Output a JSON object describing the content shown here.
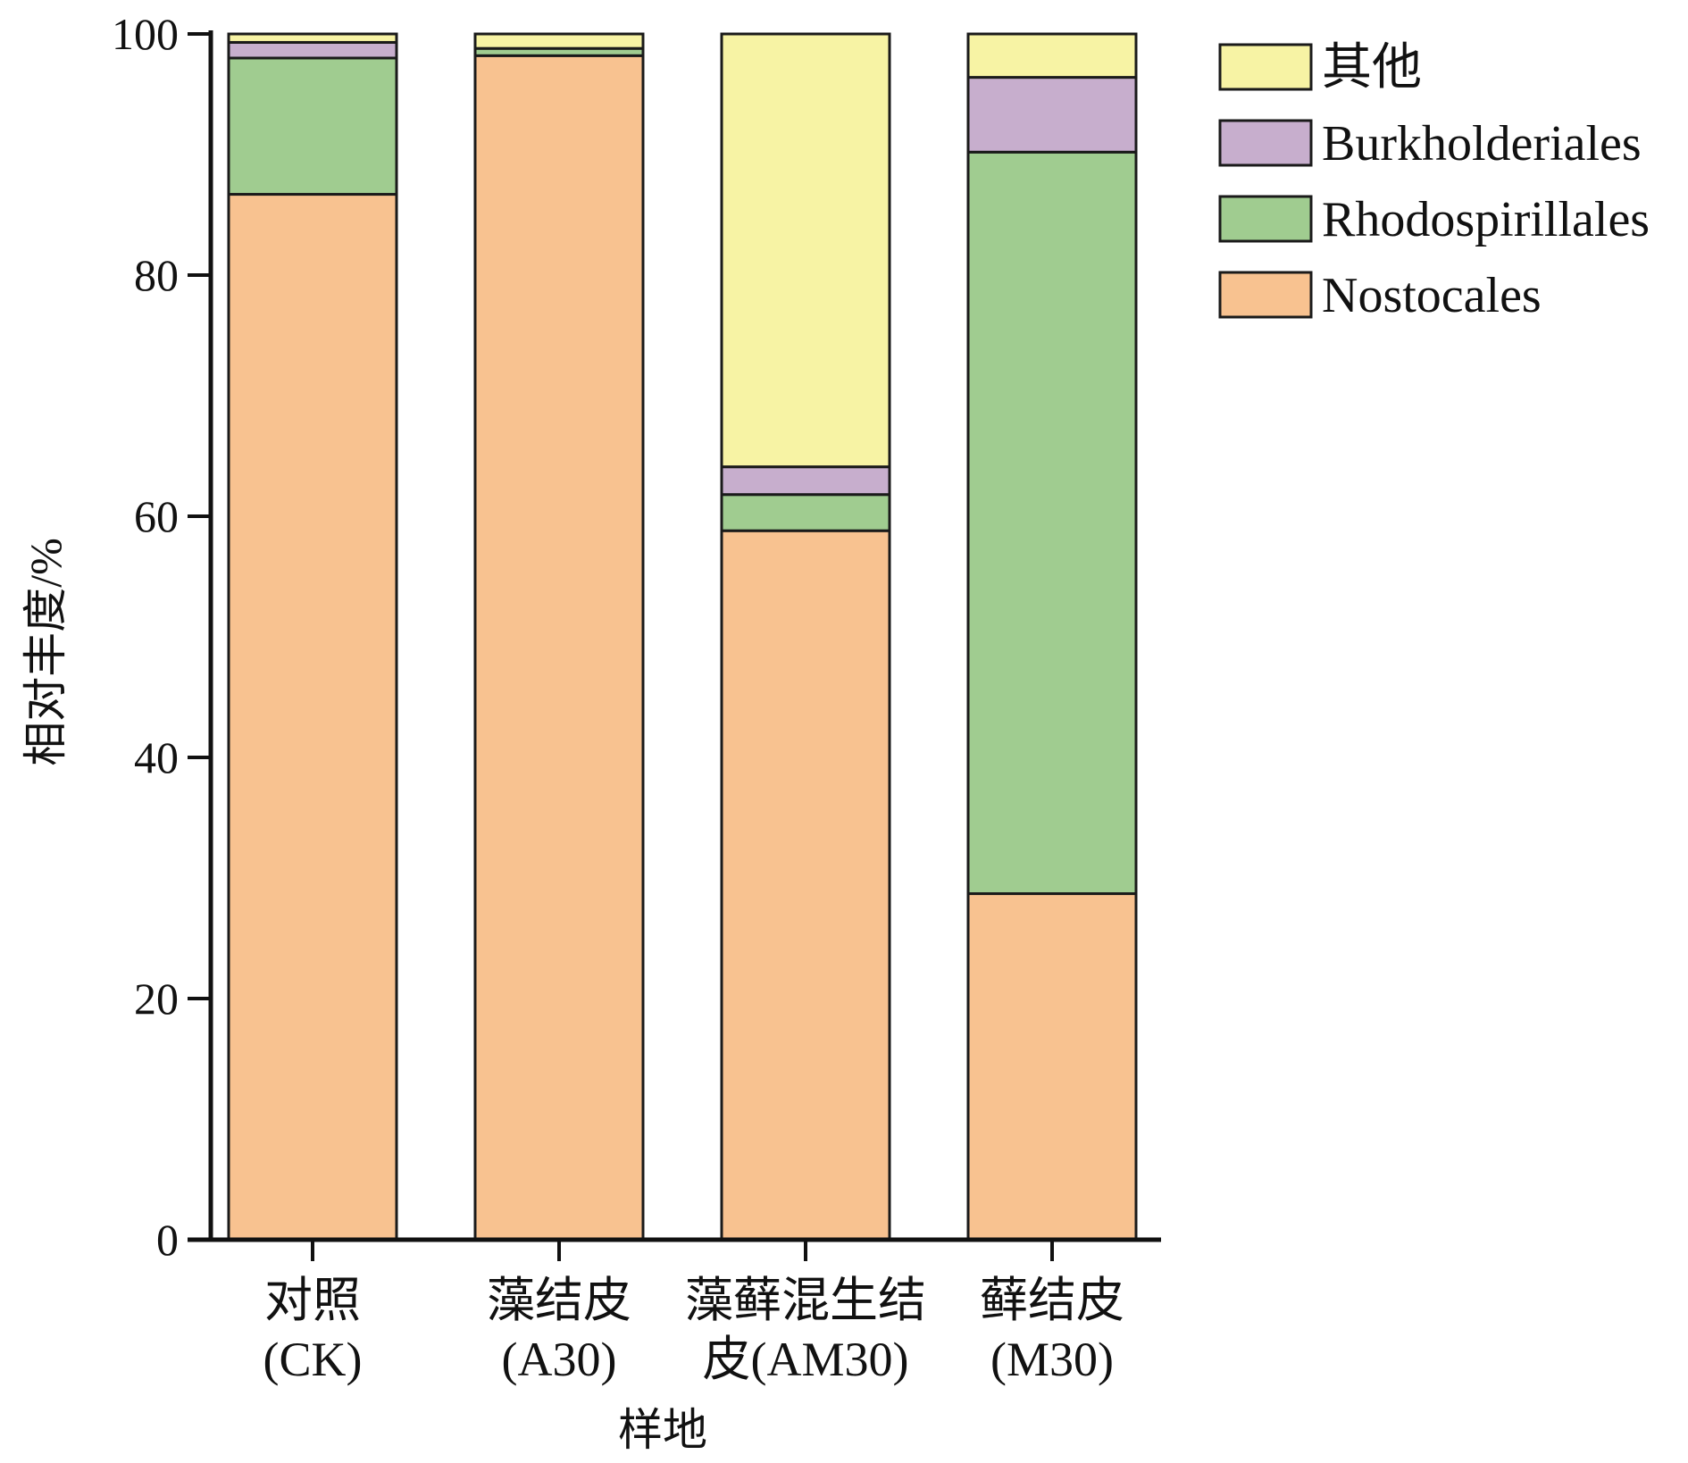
{
  "chart_data": {
    "type": "bar",
    "stacked": true,
    "xlabel": "样地",
    "ylabel": "相对丰度/%",
    "ylim": [
      0,
      100
    ],
    "yticks": [
      0,
      20,
      40,
      60,
      80,
      100
    ],
    "categories": [
      [
        "对照",
        "(CK)"
      ],
      [
        "藻结皮",
        "(A30)"
      ],
      [
        "藻藓混生结",
        "皮(AM30)"
      ],
      [
        "藓结皮",
        "(M30)"
      ]
    ],
    "series": [
      {
        "name": "Nostocales",
        "color": "#F8C290",
        "values": [
          86.7,
          98.2,
          58.8,
          28.7
        ]
      },
      {
        "name": "Rhodospirillales",
        "color": "#A0CC90",
        "values": [
          11.3,
          0.6,
          3.0,
          61.5
        ]
      },
      {
        "name": "Burkholderiales",
        "color": "#C7AECD",
        "values": [
          1.3,
          0.0,
          2.3,
          6.2
        ]
      },
      {
        "name": "其他",
        "color": "#F7F3A4",
        "values": [
          0.7,
          1.2,
          35.9,
          3.6
        ]
      }
    ],
    "legend_order": [
      "其他",
      "Burkholderiales",
      "Rhodospirillales",
      "Nostocales"
    ],
    "legend_position": "top-right",
    "grid": false
  }
}
